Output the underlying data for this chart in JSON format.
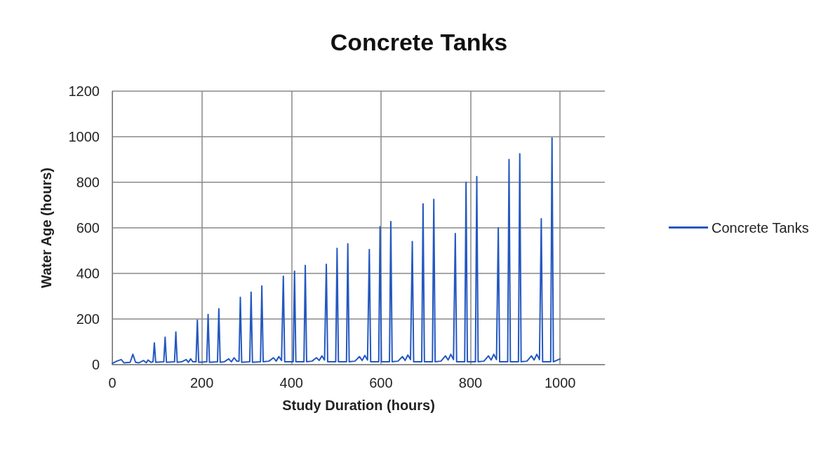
{
  "chart_data": {
    "type": "line",
    "title": "Concrete Tanks",
    "xlabel": "Study Duration (hours)",
    "ylabel": "Water Age (hours)",
    "xlim": [
      0,
      1100
    ],
    "xticks": [
      0,
      200,
      400,
      600,
      800,
      1000
    ],
    "ylim": [
      0,
      1200
    ],
    "yticks": [
      0,
      200,
      400,
      600,
      800,
      1000,
      1200
    ],
    "grid": true,
    "legend": "right",
    "marker": "none",
    "line_style": "solid",
    "series": [
      {
        "name": "Concrete Tanks",
        "color": "#2458c0",
        "x": [
          0,
          10,
          20,
          26,
          40,
          46,
          52,
          60,
          70,
          76,
          80,
          86,
          91,
          94,
          97,
          115,
          118,
          121,
          139,
          142,
          145,
          155,
          165,
          170,
          175,
          180,
          187,
          190,
          193,
          211,
          214,
          217,
          235,
          238,
          241,
          250,
          260,
          266,
          272,
          278,
          283,
          286,
          289,
          307,
          310,
          313,
          331,
          334,
          337,
          350,
          360,
          366,
          372,
          378,
          379,
          382,
          385,
          404,
          407,
          410,
          428,
          431,
          434,
          446,
          456,
          462,
          468,
          474,
          475,
          478,
          481,
          499,
          502,
          505,
          523,
          526,
          529,
          542,
          552,
          558,
          564,
          570,
          571,
          574,
          577,
          595,
          598,
          601,
          619,
          622,
          625,
          638,
          648,
          654,
          660,
          666,
          667,
          670,
          673,
          691,
          694,
          697,
          715,
          718,
          721,
          734,
          744,
          750,
          756,
          762,
          763,
          766,
          769,
          787,
          790,
          793,
          811,
          814,
          817,
          830,
          840,
          846,
          852,
          858,
          859,
          862,
          865,
          883,
          886,
          889,
          907,
          910,
          913,
          926,
          936,
          942,
          948,
          954,
          955,
          958,
          961,
          979,
          982,
          985,
          1000
        ],
        "values": [
          5,
          15,
          22,
          8,
          10,
          45,
          10,
          8,
          18,
          8,
          20,
          10,
          12,
          95,
          10,
          12,
          120,
          10,
          12,
          143,
          10,
          12,
          22,
          10,
          25,
          12,
          12,
          195,
          10,
          12,
          220,
          10,
          12,
          245,
          10,
          12,
          25,
          12,
          30,
          15,
          15,
          295,
          10,
          12,
          318,
          10,
          12,
          345,
          12,
          15,
          30,
          15,
          35,
          18,
          18,
          388,
          12,
          12,
          410,
          12,
          12,
          435,
          12,
          15,
          30,
          18,
          38,
          20,
          20,
          440,
          12,
          12,
          510,
          12,
          12,
          530,
          12,
          15,
          35,
          18,
          40,
          20,
          20,
          505,
          12,
          12,
          605,
          12,
          12,
          628,
          12,
          15,
          35,
          18,
          42,
          22,
          22,
          540,
          12,
          12,
          705,
          12,
          12,
          725,
          12,
          15,
          38,
          20,
          45,
          22,
          22,
          575,
          12,
          12,
          800,
          12,
          12,
          825,
          12,
          15,
          38,
          20,
          45,
          22,
          22,
          600,
          12,
          12,
          900,
          12,
          12,
          925,
          12,
          15,
          38,
          20,
          45,
          22,
          22,
          640,
          12,
          12,
          995,
          12,
          25
        ]
      }
    ]
  }
}
